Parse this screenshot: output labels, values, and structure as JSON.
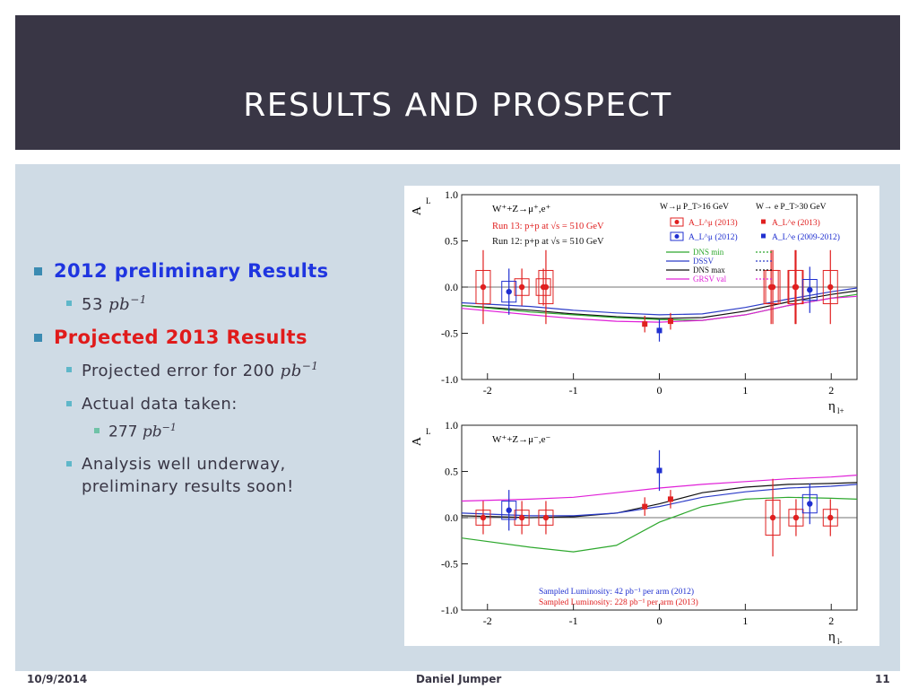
{
  "slide": {
    "title": "RESULTS AND PROSPECT",
    "bullets": {
      "b1": "2012 preliminary Results",
      "b1_sub_num": "53",
      "b1_sub_unit": "pb",
      "b1_sub_exp": "−1",
      "b2": "Projected 2013 Results",
      "b2_sub1": "Projected error for 200",
      "b2_sub1_unit": "pb",
      "b2_sub1_exp": "−1",
      "b2_sub2": "Actual data taken:",
      "b2_sub2_sub_num": "277",
      "b2_sub2_sub_unit": "pb",
      "b2_sub2_sub_exp": "−1",
      "b2_sub3_line1": "Analysis well underway,",
      "b2_sub3_line2": "preliminary results soon!"
    },
    "colors": {
      "blue_text": "#1f35e0",
      "red_text": "#e01b1b",
      "header_bg": "#393645",
      "content_bg": "#cfdbe5"
    },
    "footer": {
      "date": "10/9/2014",
      "author": "Daniel Jumper",
      "page": "11"
    }
  },
  "chart_data": [
    {
      "type": "scatter",
      "xlabel": "η",
      "xlabel_sub": "l+",
      "ylabel": "A",
      "ylabel_sub": "L",
      "xlim": [
        -2.3,
        2.3
      ],
      "ylim": [
        -1.0,
        1.0
      ],
      "x_ticks": [
        -2,
        -1,
        0,
        1,
        2
      ],
      "x_tick_labels": [
        "-2",
        "-1",
        "0",
        "1",
        "2"
      ],
      "y_ticks": [
        1.0,
        0.5,
        0.0,
        -0.5,
        -1.0
      ],
      "y_tick_labels": [
        "1.0",
        "0.5",
        "0.0",
        "-0.5",
        "-1.0"
      ],
      "process_label": "W⁺+Z→μ⁺,e⁺",
      "run_labels": [
        "Run 13: p+p at √s = 510 GeV",
        "Run 12: p+p at √s = 510 GeV"
      ],
      "legend": {
        "channel_headers": [
          "W→μ  P_T>16 GeV",
          "W→ e P_T>30 GeV"
        ],
        "entries": [
          "A_L^μ (2013)",
          "A_L^μ (2012)",
          "A_L^e (2013)",
          "A_L^e (2009-2012)",
          "DNS min",
          "DSSV",
          "DNS max",
          "GRSV val"
        ]
      },
      "series": [
        {
          "name": "A_L^μ (2013)",
          "points": [
            [
              -2.05,
              0.0,
              0.4
            ],
            [
              -1.32,
              0.0,
              0.4
            ],
            [
              1.32,
              0.0,
              0.4
            ],
            [
              1.59,
              0.0,
              0.4
            ],
            [
              1.99,
              0.0,
              0.4
            ],
            [
              -1.6,
              0.0,
              0.2
            ],
            [
              -1.35,
              0.0,
              0.2
            ],
            [
              1.3,
              0.0,
              0.4
            ],
            [
              1.58,
              0.0,
              0.4
            ]
          ]
        },
        {
          "name": "A_L^μ (2012)",
          "points": [
            [
              -1.75,
              -0.05,
              0.25
            ],
            [
              1.75,
              -0.03,
              0.25
            ]
          ]
        },
        {
          "name": "A_L^e (2013)",
          "points": [
            [
              -0.17,
              -0.4,
              0.09
            ],
            [
              0.13,
              -0.37,
              0.09
            ]
          ]
        },
        {
          "name": "A_L^e (2009-2012)",
          "points": [
            [
              0.0,
              -0.47,
              0.12
            ]
          ]
        }
      ],
      "curves": [
        {
          "name": "DSSV",
          "x": [
            -2.3,
            -1.5,
            -1.0,
            -0.5,
            0.0,
            0.5,
            1.0,
            1.5,
            2.0,
            2.3
          ],
          "y": [
            -0.17,
            -0.21,
            -0.25,
            -0.28,
            -0.3,
            -0.29,
            -0.22,
            -0.13,
            -0.05,
            -0.01
          ]
        },
        {
          "name": "DNS max",
          "x": [
            -2.3,
            -1.5,
            -1.0,
            -0.5,
            0.0,
            0.5,
            1.0,
            1.5,
            2.0,
            2.3
          ],
          "y": [
            -0.2,
            -0.25,
            -0.29,
            -0.32,
            -0.34,
            -0.33,
            -0.26,
            -0.16,
            -0.08,
            -0.04
          ]
        },
        {
          "name": "DNS min",
          "x": [
            -2.3,
            -1.5,
            -1.0,
            -0.5,
            0.0,
            0.5,
            1.0,
            1.5,
            2.0,
            2.3
          ],
          "y": [
            -0.2,
            -0.27,
            -0.3,
            -0.33,
            -0.35,
            -0.36,
            -0.3,
            -0.2,
            -0.12,
            -0.08
          ]
        },
        {
          "name": "GRSV val",
          "x": [
            -2.3,
            -1.5,
            -1.0,
            -0.5,
            0.0,
            0.5,
            1.0,
            1.5,
            2.0,
            2.3
          ],
          "y": [
            -0.23,
            -0.3,
            -0.34,
            -0.37,
            -0.38,
            -0.36,
            -0.3,
            -0.2,
            -0.12,
            -0.1
          ]
        }
      ]
    },
    {
      "type": "scatter",
      "xlabel": "η",
      "xlabel_sub": "l-",
      "ylabel": "A",
      "ylabel_sub": "L",
      "xlim": [
        -2.3,
        2.3
      ],
      "ylim": [
        -1.0,
        1.0
      ],
      "x_ticks": [
        -2,
        -1,
        0,
        1,
        2
      ],
      "x_tick_labels": [
        "-2",
        "-1",
        "0",
        "1",
        "2"
      ],
      "y_ticks": [
        1.0,
        0.5,
        0.0,
        -0.5,
        -1.0
      ],
      "y_tick_labels": [
        "1.0",
        "0.5",
        "0.0",
        "-0.5",
        "-1.0"
      ],
      "process_label": "W⁺+Z→μ⁻,e⁻",
      "luminosity_labels": [
        "Sampled Luminosity: 42 pb⁻¹  per arm (2012)",
        "Sampled Luminosity: 228 pb⁻¹ per arm (2013)"
      ],
      "series": [
        {
          "name": "A_L^μ (2013)",
          "points": [
            [
              -2.05,
              0.0,
              0.18
            ],
            [
              -1.6,
              0.0,
              0.18
            ],
            [
              -1.32,
              0.0,
              0.18
            ],
            [
              1.32,
              0.0,
              0.42
            ],
            [
              1.59,
              0.0,
              0.2
            ],
            [
              1.99,
              0.0,
              0.2
            ]
          ]
        },
        {
          "name": "A_L^μ (2012)",
          "points": [
            [
              -1.75,
              0.08,
              0.22
            ],
            [
              1.75,
              0.15,
              0.22
            ]
          ]
        },
        {
          "name": "A_L^e (2013)",
          "points": [
            [
              -0.17,
              0.12,
              0.1
            ],
            [
              0.13,
              0.2,
              0.1
            ]
          ]
        },
        {
          "name": "A_L^e (2009-2012)",
          "points": [
            [
              0.0,
              0.51,
              0.22
            ]
          ]
        }
      ],
      "curves": [
        {
          "name": "GRSV val",
          "x": [
            -2.3,
            -1.5,
            -1.0,
            -0.5,
            0.0,
            0.5,
            1.0,
            1.5,
            2.0,
            2.3
          ],
          "y": [
            0.18,
            0.2,
            0.22,
            0.27,
            0.32,
            0.36,
            0.39,
            0.42,
            0.44,
            0.46
          ]
        },
        {
          "name": "DNS max",
          "x": [
            -2.3,
            -1.5,
            -1.0,
            -0.5,
            0.0,
            0.5,
            1.0,
            1.5,
            2.0,
            2.3
          ],
          "y": [
            0.02,
            0.0,
            0.01,
            0.05,
            0.15,
            0.27,
            0.33,
            0.36,
            0.37,
            0.38
          ]
        },
        {
          "name": "DSSV",
          "x": [
            -2.3,
            -1.5,
            -1.0,
            -0.5,
            0.0,
            0.5,
            1.0,
            1.5,
            2.0,
            2.3
          ],
          "y": [
            0.05,
            0.02,
            0.02,
            0.05,
            0.12,
            0.22,
            0.28,
            0.32,
            0.34,
            0.36
          ]
        },
        {
          "name": "DNS min",
          "x": [
            -2.3,
            -1.5,
            -1.0,
            -0.5,
            0.0,
            0.5,
            1.0,
            1.5,
            2.0,
            2.3
          ],
          "y": [
            -0.22,
            -0.32,
            -0.37,
            -0.3,
            -0.05,
            0.12,
            0.2,
            0.22,
            0.21,
            0.2
          ]
        }
      ]
    }
  ]
}
